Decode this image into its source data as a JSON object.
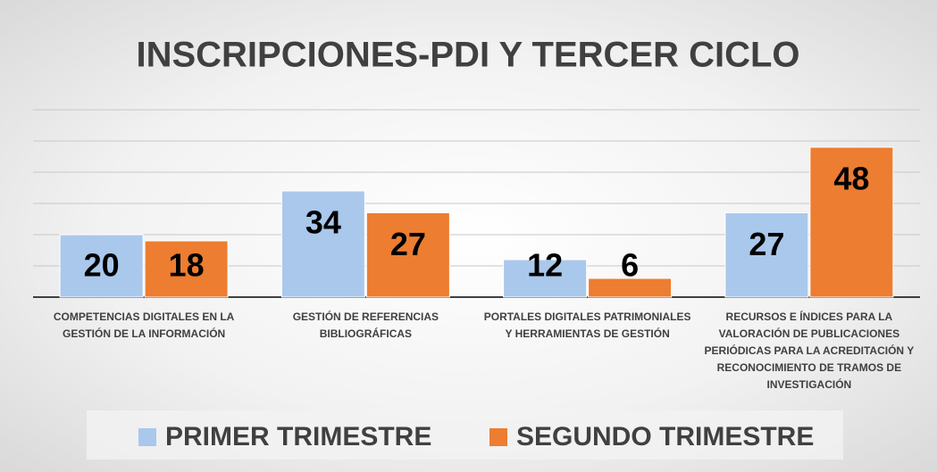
{
  "chart_data": {
    "type": "bar",
    "title": "INSCRIPCIONES-PDI Y TERCER CICLO",
    "categories": [
      "COMPETENCIAS DIGITALES EN LA GESTIÓN DE LA INFORMACIÓN",
      "GESTIÓN DE REFERENCIAS BIBLIOGRÁFICAS",
      "PORTALES DIGITALES PATRIMONIALES Y HERRAMIENTAS DE GESTIÓN",
      "RECURSOS E ÍNDICES PARA LA VALORACIÓN DE PUBLICACIONES PERIÓDICAS PARA LA ACREDITACIÓN Y RECONOCIMIENTO DE TRAMOS DE INVESTIGACIÓN"
    ],
    "series": [
      {
        "name": "PRIMER TRIMESTRE",
        "color": "#a9c8ec",
        "values": [
          20,
          34,
          12,
          27
        ]
      },
      {
        "name": "SEGUNDO TRIMESTRE",
        "color": "#ed7d31",
        "values": [
          18,
          27,
          6,
          48
        ]
      }
    ],
    "ylim": [
      0,
      60
    ],
    "yticks": [
      0,
      10,
      20,
      30,
      40,
      50,
      60
    ],
    "grid": true,
    "legend": "bottom"
  }
}
